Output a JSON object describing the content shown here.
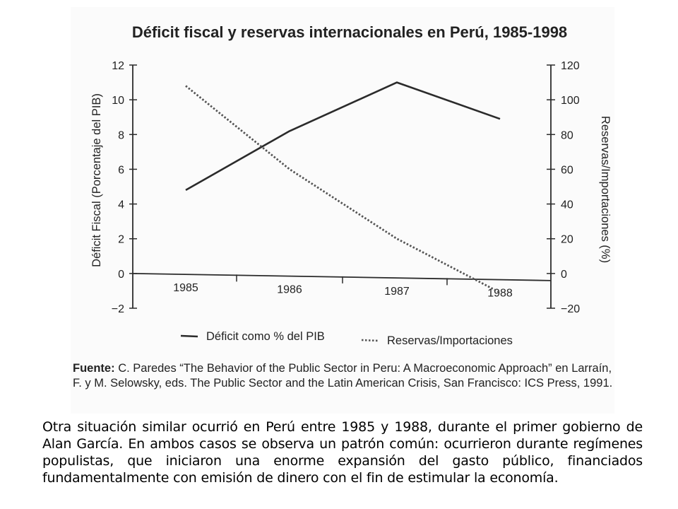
{
  "chart_data": {
    "type": "line",
    "title": "Déficit fiscal y reservas internacionales en Perú, 1985-1998",
    "categories": [
      "1985",
      "1986",
      "1987",
      "1988"
    ],
    "y_left": {
      "label": "Déficit Fiscal (Porcentaje del PIB)",
      "ylim": [
        -2,
        12
      ],
      "ticks": [
        "12",
        "10",
        "8",
        "6",
        "4",
        "2",
        "0",
        "−2"
      ]
    },
    "y_right": {
      "label": "Reservas/Importaciones (%)",
      "ylim": [
        -20,
        120
      ],
      "ticks": [
        "120",
        "100",
        "80",
        "60",
        "40",
        "20",
        "0",
        "−20"
      ]
    },
    "series": [
      {
        "name": "Déficit como % del PIB",
        "axis": "left",
        "style": "solid",
        "values": [
          4.8,
          8.2,
          11.0,
          8.9
        ]
      },
      {
        "name": "Reservas/Importaciones",
        "axis": "right",
        "style": "dotted",
        "values": [
          108,
          60,
          20,
          -11
        ]
      }
    ],
    "grid": false,
    "legend": "bottom"
  },
  "source": {
    "label": "Fuente:",
    "text": "C. Paredes “The Behavior of the Public Sector in Peru: A Macroeconomic Approach” en Larraín, F. y M. Selowsky, eds. The Public Sector and the Latin American Crisis, San Francisco: ICS Press, 1991."
  },
  "paragraph": "Otra situación similar ocurrió en Perú entre 1985 y 1988, durante el primer gobierno de Alan García. En ambos casos se observa un patrón común: ocurrieron durante regímenes populistas, que iniciaron una enorme expansión del gasto público, financiados fundamentalmente con emisión de dinero con el fin de estimular la economía.",
  "colors": {
    "line": "#2b2b2b",
    "text": "#222222"
  }
}
